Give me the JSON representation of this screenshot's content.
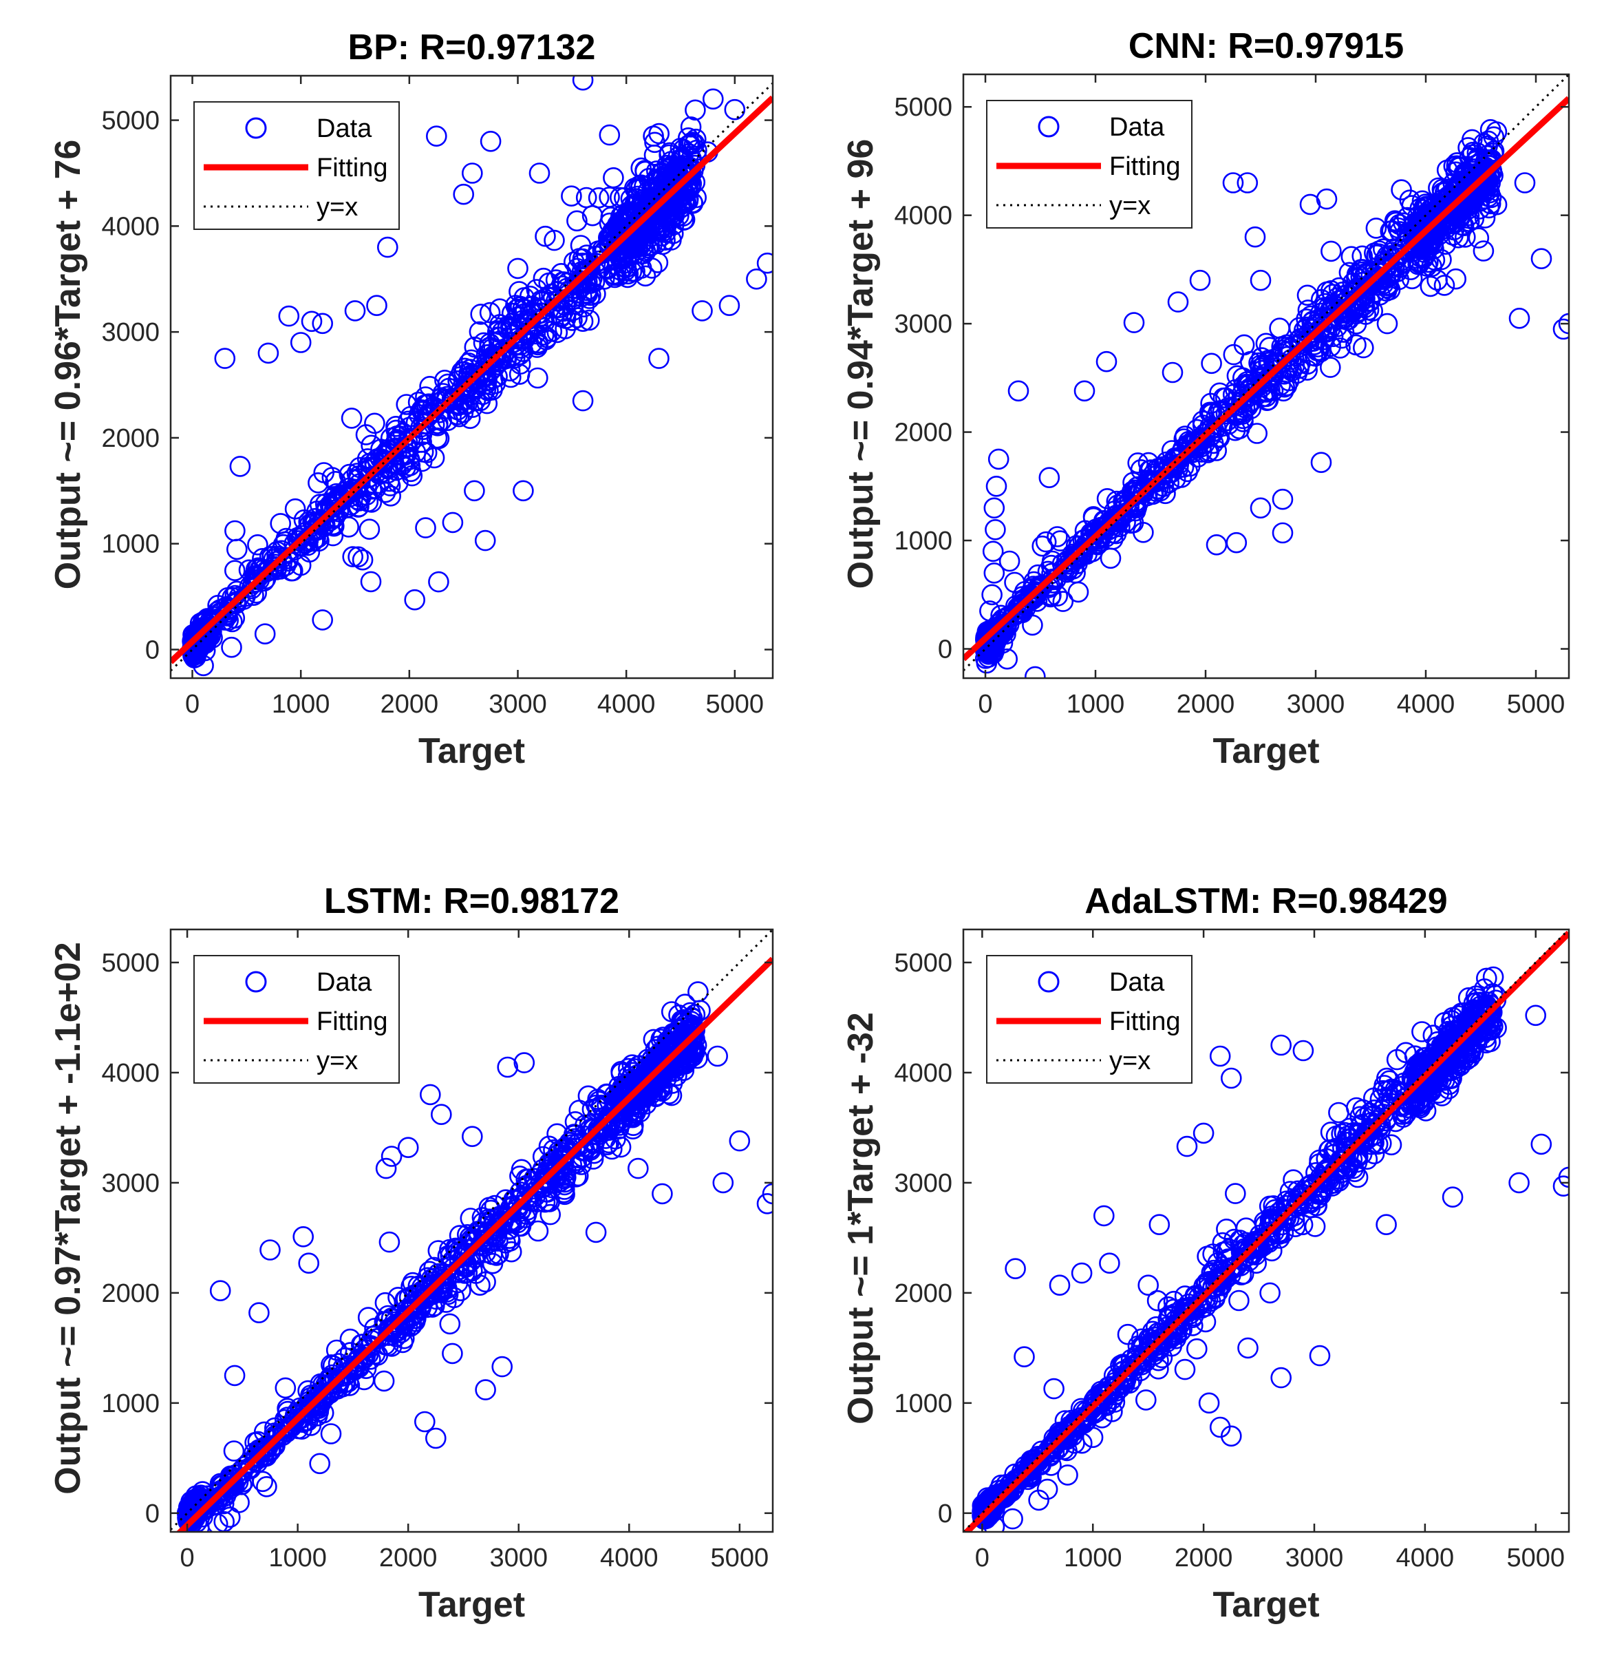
{
  "figure": {
    "description_colors": {
      "data_marker": "#0000ff",
      "fit_line": "#ff0000",
      "identity_line": "#000000",
      "axis": "#262626"
    }
  },
  "chart_data": [
    {
      "type": "scatter",
      "title": "BP: R=0.97132",
      "xlabel": "Target",
      "ylabel": "Output ~= 0.96*Target + 76",
      "xlim": [
        -200,
        5350
      ],
      "ylim": [
        -270,
        5420
      ],
      "xticks": [
        0,
        1000,
        2000,
        3000,
        4000,
        5000
      ],
      "yticks": [
        0,
        1000,
        2000,
        3000,
        4000,
        5000
      ],
      "fit": {
        "slope": 0.96,
        "intercept": 76
      },
      "legend": {
        "position": "top-left",
        "entries": [
          "Data",
          "Fitting",
          "y=x"
        ]
      },
      "scatter_seed": 11,
      "noise_level": 1.0,
      "outliers": [
        [
          300,
          2750
        ],
        [
          440,
          1730
        ],
        [
          700,
          2800
        ],
        [
          890,
          3150
        ],
        [
          1100,
          3100
        ],
        [
          1200,
          280
        ],
        [
          2050,
          470
        ],
        [
          2270,
          640
        ],
        [
          2700,
          1030
        ],
        [
          3050,
          1500
        ],
        [
          2500,
          4300
        ],
        [
          2750,
          4800
        ],
        [
          3600,
          5380
        ],
        [
          4250,
          4850
        ],
        [
          4750,
          4700
        ],
        [
          4800,
          5200
        ],
        [
          5000,
          5100
        ],
        [
          5200,
          3500
        ],
        [
          5300,
          3650
        ],
        [
          4950,
          3250
        ],
        [
          4700,
          3200
        ],
        [
          4300,
          2750
        ],
        [
          3600,
          2350
        ],
        [
          3000,
          3600
        ],
        [
          1500,
          3200
        ],
        [
          1700,
          3250
        ],
        [
          1800,
          3800
        ],
        [
          1200,
          3080
        ],
        [
          2250,
          4850
        ],
        [
          2580,
          4500
        ],
        [
          3200,
          4500
        ],
        [
          1000,
          2900
        ],
        [
          2400,
          1200
        ],
        [
          2150,
          1150
        ],
        [
          2600,
          1500
        ]
      ]
    },
    {
      "type": "scatter",
      "title": "CNN: R=0.97915",
      "xlabel": "Target",
      "ylabel": "Output ~= 0.94*Target + 96",
      "xlim": [
        -200,
        5300
      ],
      "ylim": [
        -270,
        5300
      ],
      "xticks": [
        0,
        1000,
        2000,
        3000,
        4000,
        5000
      ],
      "yticks": [
        0,
        1000,
        2000,
        3000,
        4000,
        5000
      ],
      "fit": {
        "slope": 0.94,
        "intercept": 96
      },
      "legend": {
        "position": "top-left",
        "entries": [
          "Data",
          "Fitting",
          "y=x"
        ]
      },
      "scatter_seed": 23,
      "noise_level": 0.8,
      "outliers": [
        [
          40,
          350
        ],
        [
          60,
          500
        ],
        [
          80,
          700
        ],
        [
          70,
          900
        ],
        [
          90,
          1100
        ],
        [
          80,
          1300
        ],
        [
          100,
          1500
        ],
        [
          120,
          1750
        ],
        [
          300,
          2380
        ],
        [
          580,
          1580
        ],
        [
          900,
          2380
        ],
        [
          1100,
          2650
        ],
        [
          1350,
          3010
        ],
        [
          1700,
          2550
        ],
        [
          1750,
          3200
        ],
        [
          1950,
          3400
        ],
        [
          2250,
          4300
        ],
        [
          2380,
          4300
        ],
        [
          2450,
          3800
        ],
        [
          2500,
          3400
        ],
        [
          2700,
          1070
        ],
        [
          3050,
          1720
        ],
        [
          2100,
          960
        ],
        [
          2280,
          980
        ],
        [
          2500,
          1300
        ],
        [
          2700,
          1380
        ],
        [
          2950,
          4100
        ],
        [
          3100,
          4150
        ],
        [
          4850,
          3050
        ],
        [
          5050,
          3600
        ],
        [
          5250,
          2950
        ],
        [
          5300,
          3000
        ],
        [
          4600,
          4400
        ],
        [
          4900,
          4300
        ],
        [
          3650,
          3000
        ]
      ]
    },
    {
      "type": "scatter",
      "title": "LSTM: R=0.98172",
      "xlabel": "Target",
      "ylabel": "Output ~= 0.97*Target + -1.1e+02",
      "xlim": [
        -150,
        5300
      ],
      "ylim": [
        -170,
        5300
      ],
      "xticks": [
        0,
        1000,
        2000,
        3000,
        4000,
        5000
      ],
      "yticks": [
        0,
        1000,
        2000,
        3000,
        4000,
        5000
      ],
      "fit": {
        "slope": 0.97,
        "intercept": -110
      },
      "legend": {
        "position": "top-left",
        "entries": [
          "Data",
          "Fitting",
          "y=x"
        ]
      },
      "scatter_seed": 37,
      "noise_level": 0.7,
      "outliers": [
        [
          300,
          2020
        ],
        [
          430,
          1250
        ],
        [
          650,
          1820
        ],
        [
          750,
          2390
        ],
        [
          1050,
          2510
        ],
        [
          1100,
          2270
        ],
        [
          1800,
          3130
        ],
        [
          2000,
          3320
        ],
        [
          2200,
          3800
        ],
        [
          2300,
          3620
        ],
        [
          2580,
          3420
        ],
        [
          2900,
          4050
        ],
        [
          3050,
          4090
        ],
        [
          2850,
          1330
        ],
        [
          2700,
          1120
        ],
        [
          2150,
          830
        ],
        [
          2250,
          680
        ],
        [
          1950,
          1550
        ],
        [
          4300,
          2900
        ],
        [
          4850,
          3000
        ],
        [
          5000,
          3380
        ],
        [
          5250,
          2810
        ],
        [
          5300,
          2900
        ],
        [
          4800,
          4150
        ],
        [
          3700,
          2550
        ],
        [
          1850,
          3240
        ],
        [
          2400,
          1450
        ],
        [
          2650,
          2070
        ],
        [
          2700,
          2100
        ],
        [
          1200,
          450
        ]
      ]
    },
    {
      "type": "scatter",
      "title": "AdaLSTM: R=0.98429",
      "xlabel": "Target",
      "ylabel": "Output ~= 1*Target + -32",
      "xlim": [
        -170,
        5300
      ],
      "ylim": [
        -170,
        5300
      ],
      "xticks": [
        0,
        1000,
        2000,
        3000,
        4000,
        5000
      ],
      "yticks": [
        0,
        1000,
        2000,
        3000,
        4000,
        5000
      ],
      "fit": {
        "slope": 1.0,
        "intercept": -32
      },
      "legend": {
        "position": "top-left",
        "entries": [
          "Data",
          "Fitting",
          "y=x"
        ]
      },
      "scatter_seed": 53,
      "noise_level": 0.65,
      "outliers": [
        [
          300,
          2220
        ],
        [
          380,
          1420
        ],
        [
          700,
          2070
        ],
        [
          900,
          2180
        ],
        [
          1100,
          2700
        ],
        [
          1150,
          2270
        ],
        [
          1600,
          2620
        ],
        [
          1850,
          3330
        ],
        [
          2000,
          3450
        ],
        [
          2150,
          4150
        ],
        [
          2250,
          3950
        ],
        [
          2700,
          4250
        ],
        [
          2900,
          4200
        ],
        [
          3050,
          1430
        ],
        [
          2700,
          1230
        ],
        [
          2150,
          780
        ],
        [
          2250,
          700
        ],
        [
          2050,
          1000
        ],
        [
          4250,
          2870
        ],
        [
          4850,
          3000
        ],
        [
          5050,
          3350
        ],
        [
          5250,
          2970
        ],
        [
          5300,
          3050
        ],
        [
          5000,
          4520
        ],
        [
          3650,
          2620
        ],
        [
          1500,
          2070
        ],
        [
          2400,
          1500
        ],
        [
          2600,
          2000
        ]
      ]
    }
  ]
}
